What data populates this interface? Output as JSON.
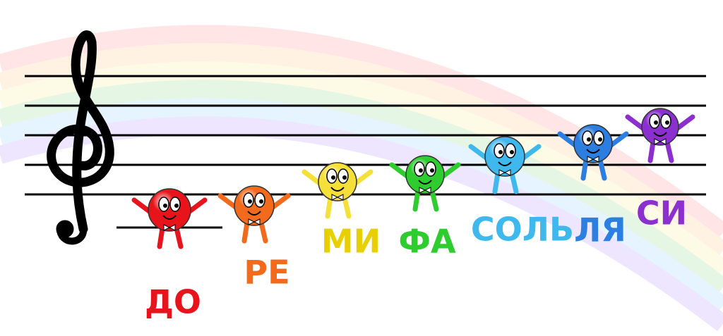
{
  "notes": [
    {
      "label": "ДО"
    },
    {
      "label": "РЕ"
    },
    {
      "label": "МИ"
    },
    {
      "label": "ФА"
    },
    {
      "label": "СОЛЬ"
    },
    {
      "label": "ЛЯ"
    },
    {
      "label": "СИ"
    }
  ]
}
